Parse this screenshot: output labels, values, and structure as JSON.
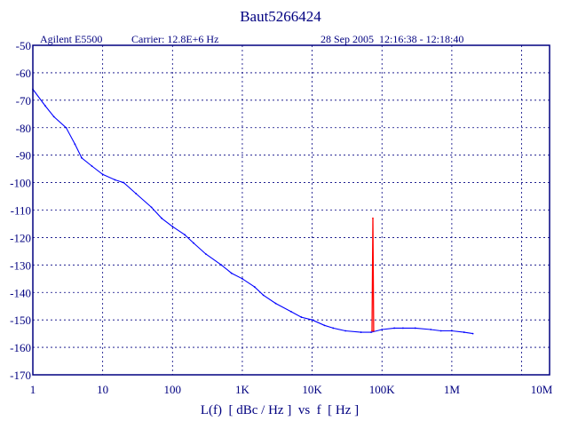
{
  "title": "Baut5266424",
  "header": {
    "instrument": "Agilent E5500",
    "carrier": "Carrier: 12.8E+6 Hz",
    "timestamp": "28 Sep 2005  12:16:38 - 12:18:40"
  },
  "colors": {
    "plot_border": "#000080",
    "grid": "#000080",
    "text": "#000080",
    "trace": "#0000ff",
    "spur": "#ff0000"
  },
  "chart_data": {
    "type": "line",
    "title": "Baut5266424",
    "xlabel": "L(f)  [ dBc / Hz ]  vs  f  [ Hz ]",
    "ylabel": "",
    "x_scale": "log",
    "xlim": [
      1,
      10000000
    ],
    "ylim": [
      -170,
      -50
    ],
    "grid": true,
    "x_ticks": [
      {
        "value": 1,
        "label": "1"
      },
      {
        "value": 10,
        "label": "10"
      },
      {
        "value": 100,
        "label": "100"
      },
      {
        "value": 1000,
        "label": "1K"
      },
      {
        "value": 10000,
        "label": "10K"
      },
      {
        "value": 100000,
        "label": "100K"
      },
      {
        "value": 1000000,
        "label": "1M"
      },
      {
        "value": 10000000,
        "label": "10M"
      }
    ],
    "y_ticks": [
      -50,
      -60,
      -70,
      -80,
      -90,
      -100,
      -110,
      -120,
      -130,
      -140,
      -150,
      -160,
      -170
    ],
    "series": [
      {
        "color": "#0000ff",
        "x": [
          1,
          1.5,
          2,
          3,
          4,
          5,
          7,
          10,
          15,
          20,
          30,
          50,
          70,
          100,
          150,
          200,
          300,
          500,
          700,
          1000,
          1500,
          2000,
          3000,
          5000,
          7000,
          10000,
          15000,
          20000,
          30000,
          50000,
          70000,
          100000,
          150000,
          200000,
          300000,
          500000,
          700000,
          1000000,
          1500000,
          2000000
        ],
        "y": [
          -66,
          -72,
          -76,
          -80,
          -86,
          -91,
          -94,
          -97,
          -99,
          -100,
          -104,
          -109,
          -113,
          -116,
          -119,
          -122,
          -126,
          -130,
          -133,
          -135,
          -138,
          -141,
          -144,
          -147,
          -149,
          -150,
          -152,
          -153,
          -154,
          -154.5,
          -154.5,
          -153.5,
          -153,
          -153,
          -153,
          -153.5,
          -154,
          -154,
          -154.5,
          -155
        ]
      },
      {
        "color": "#ff0000",
        "x": [
          72000,
          74000,
          76000
        ],
        "y": [
          -154,
          -113,
          -154
        ]
      }
    ]
  }
}
